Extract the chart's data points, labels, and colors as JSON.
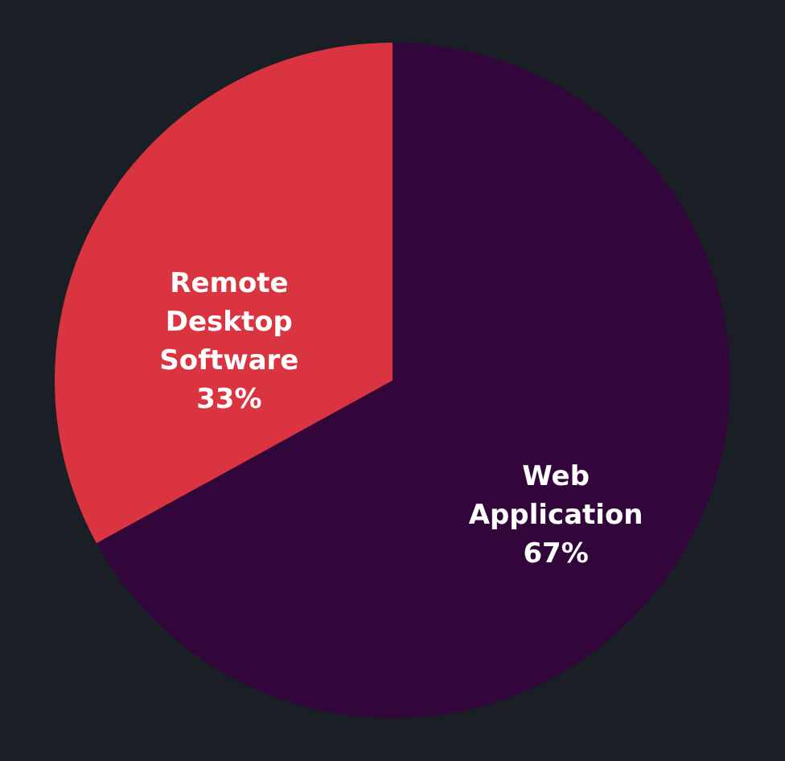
{
  "chart_data": {
    "type": "pie",
    "categories": [
      "Web Application",
      "Remote Desktop Software"
    ],
    "values": [
      67,
      33
    ],
    "value_labels": [
      "67%",
      "33%"
    ],
    "colors": [
      "#33063b",
      "#d9343f"
    ]
  }
}
